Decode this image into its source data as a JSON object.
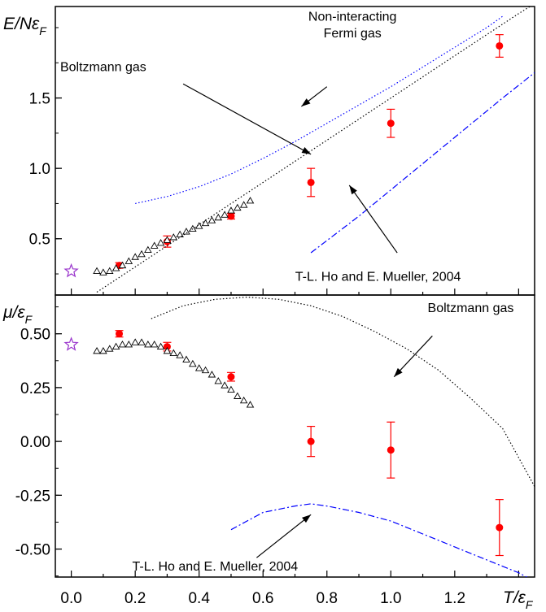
{
  "chart_data": [
    {
      "type": "scatter",
      "panel": "top",
      "ylabel": "E/Nε_F",
      "ylim": [
        0.1,
        2.15
      ],
      "xlim": [
        -0.05,
        1.45
      ],
      "yticks": [
        0.5,
        1.0,
        1.5
      ],
      "ytick_labels": [
        "0.5",
        "1.0",
        "1.5"
      ],
      "series": [
        {
          "name": "",
          "style": "red-circles-errorbars",
          "color": "#ff0000",
          "points": [
            {
              "x": 0.15,
              "y": 0.31,
              "err": 0.02
            },
            {
              "x": 0.3,
              "y": 0.48,
              "err": 0.04
            },
            {
              "x": 0.5,
              "y": 0.66,
              "err": 0.02
            },
            {
              "x": 0.75,
              "y": 0.9,
              "err": 0.1
            },
            {
              "x": 1.0,
              "y": 1.32,
              "err": 0.1
            },
            {
              "x": 1.34,
              "y": 1.87,
              "err": 0.08
            }
          ]
        },
        {
          "name": "",
          "style": "open-triangles",
          "color": "#000000",
          "x": [
            0.08,
            0.1,
            0.12,
            0.14,
            0.16,
            0.18,
            0.2,
            0.22,
            0.24,
            0.26,
            0.28,
            0.3,
            0.32,
            0.34,
            0.36,
            0.38,
            0.4,
            0.42,
            0.44,
            0.46,
            0.48,
            0.5,
            0.52,
            0.54,
            0.56
          ],
          "y": [
            0.27,
            0.26,
            0.27,
            0.29,
            0.31,
            0.34,
            0.37,
            0.39,
            0.42,
            0.45,
            0.47,
            0.49,
            0.51,
            0.53,
            0.55,
            0.57,
            0.59,
            0.61,
            0.63,
            0.65,
            0.67,
            0.7,
            0.72,
            0.74,
            0.77
          ]
        },
        {
          "name": "",
          "style": "star",
          "color": "#9933cc",
          "points": [
            {
              "x": 0.0,
              "y": 0.27
            }
          ]
        },
        {
          "name": "",
          "style": "dotted",
          "color": "#0000ff",
          "x": [
            0.2,
            0.3,
            0.4,
            0.5,
            0.6,
            0.7,
            0.8,
            0.9,
            1.0,
            1.1,
            1.2,
            1.3,
            1.35
          ],
          "y": [
            0.75,
            0.8,
            0.87,
            0.96,
            1.07,
            1.19,
            1.32,
            1.45,
            1.58,
            1.72,
            1.86,
            2.0,
            2.08
          ]
        },
        {
          "name": "",
          "style": "dotted",
          "color": "#000000",
          "x": [
            0.08,
            0.2,
            0.4,
            0.6,
            0.8,
            1.0,
            1.2,
            1.4,
            1.45
          ],
          "y": [
            0.12,
            0.3,
            0.6,
            0.9,
            1.2,
            1.5,
            1.8,
            2.1,
            2.17
          ]
        },
        {
          "name": "",
          "style": "dash-dot",
          "color": "#0000ff",
          "x": [
            0.75,
            0.9,
            1.05,
            1.2,
            1.35,
            1.45
          ],
          "y": [
            0.4,
            0.66,
            0.94,
            1.22,
            1.5,
            1.68
          ]
        }
      ],
      "annotations": [
        {
          "text": "Non-interacting",
          "x": 0.88,
          "y": 2.05
        },
        {
          "text": "Fermi gas",
          "x": 0.88,
          "y": 1.93
        },
        {
          "text": "Boltzmann gas",
          "x": 0.1,
          "y": 1.69
        },
        {
          "text": "T-L. Ho and E. Mueller, 2004",
          "x": 0.96,
          "y": 0.2
        }
      ],
      "arrows": [
        {
          "from": [
            0.8,
            1.58
          ],
          "to": [
            0.72,
            1.44
          ]
        },
        {
          "from": [
            0.35,
            1.6
          ],
          "to": [
            0.75,
            1.1
          ]
        },
        {
          "from": [
            1.02,
            0.4
          ],
          "to": [
            0.87,
            0.88
          ]
        }
      ]
    },
    {
      "type": "scatter",
      "panel": "bottom",
      "ylabel": "μ/ε_F",
      "xlabel": "T/ε_F",
      "ylim": [
        -0.63,
        0.68
      ],
      "xlim": [
        -0.05,
        1.45
      ],
      "yticks": [
        0.5,
        0.25,
        0.0,
        -0.25,
        -0.5
      ],
      "ytick_labels": [
        "0.50",
        "0.25",
        "0.00",
        "-0.25",
        "-0.50"
      ],
      "xticks": [
        0.0,
        0.2,
        0.4,
        0.6,
        0.8,
        1.0,
        1.2
      ],
      "xtick_labels": [
        "0.0",
        "0.2",
        "0.4",
        "0.6",
        "0.8",
        "1.0",
        "1.2"
      ],
      "series": [
        {
          "name": "",
          "style": "red-circles-errorbars",
          "color": "#ff0000",
          "points": [
            {
              "x": 0.15,
              "y": 0.5,
              "err": 0.015
            },
            {
              "x": 0.3,
              "y": 0.44,
              "err": 0.02
            },
            {
              "x": 0.5,
              "y": 0.3,
              "err": 0.02
            },
            {
              "x": 0.75,
              "y": 0.0,
              "err": 0.07
            },
            {
              "x": 1.0,
              "y": -0.04,
              "err": 0.13
            },
            {
              "x": 1.34,
              "y": -0.4,
              "err": 0.13
            }
          ]
        },
        {
          "name": "",
          "style": "open-triangles",
          "color": "#000000",
          "x": [
            0.08,
            0.1,
            0.12,
            0.14,
            0.16,
            0.18,
            0.2,
            0.22,
            0.24,
            0.26,
            0.28,
            0.3,
            0.32,
            0.34,
            0.36,
            0.38,
            0.4,
            0.42,
            0.44,
            0.46,
            0.48,
            0.5,
            0.52,
            0.54,
            0.56
          ],
          "y": [
            0.42,
            0.42,
            0.43,
            0.44,
            0.45,
            0.45,
            0.46,
            0.46,
            0.45,
            0.45,
            0.44,
            0.42,
            0.41,
            0.4,
            0.38,
            0.36,
            0.34,
            0.33,
            0.31,
            0.28,
            0.26,
            0.24,
            0.21,
            0.19,
            0.17
          ]
        },
        {
          "name": "",
          "style": "star",
          "color": "#9933cc",
          "points": [
            {
              "x": 0.0,
              "y": 0.45
            }
          ]
        },
        {
          "name": "",
          "style": "dotted",
          "color": "#000000",
          "x": [
            0.25,
            0.35,
            0.45,
            0.55,
            0.65,
            0.75,
            0.85,
            0.95,
            1.05,
            1.15,
            1.25,
            1.35,
            1.45
          ],
          "y": [
            0.57,
            0.63,
            0.66,
            0.67,
            0.66,
            0.63,
            0.58,
            0.51,
            0.43,
            0.33,
            0.2,
            0.06,
            -0.21
          ]
        },
        {
          "name": "",
          "style": "dash-dot",
          "color": "#0000ff",
          "x": [
            0.5,
            0.6,
            0.7,
            0.75,
            0.8,
            0.9,
            1.0,
            1.1,
            1.2,
            1.3,
            1.4,
            1.45
          ],
          "y": [
            -0.41,
            -0.33,
            -0.3,
            -0.29,
            -0.3,
            -0.33,
            -0.37,
            -0.43,
            -0.49,
            -0.55,
            -0.61,
            -0.65
          ]
        }
      ],
      "annotations": [
        {
          "text": "Boltzmann gas",
          "x": 1.25,
          "y": 0.6
        },
        {
          "text": "T-L. Ho and E. Mueller, 2004",
          "x": 0.45,
          "y": -0.6
        }
      ],
      "arrows": [
        {
          "from": [
            1.13,
            0.49
          ],
          "to": [
            1.01,
            0.3
          ]
        },
        {
          "from": [
            0.58,
            -0.54
          ],
          "to": [
            0.75,
            -0.34
          ]
        }
      ]
    }
  ]
}
